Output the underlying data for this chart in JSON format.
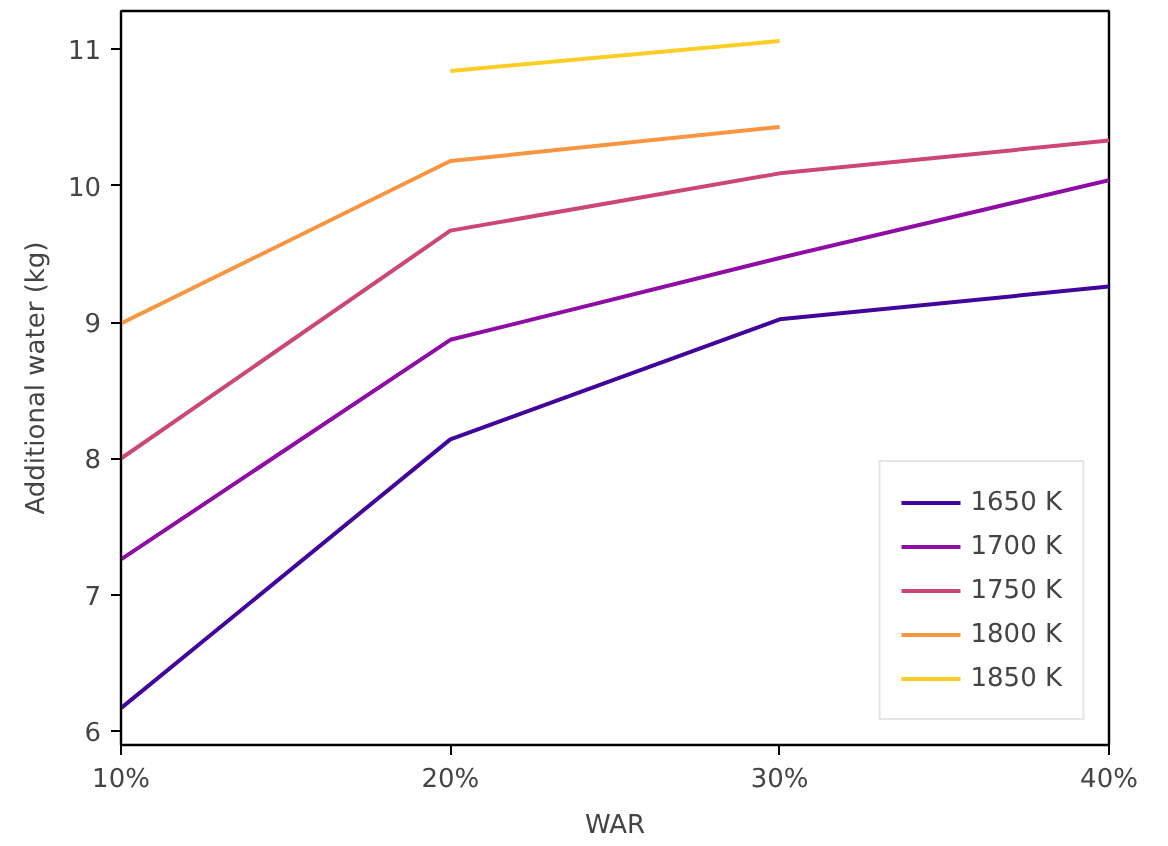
{
  "chart_data": {
    "type": "line",
    "xlabel": "WAR",
    "ylabel": "Additional water (kg)",
    "x": [
      10,
      20,
      30,
      40
    ],
    "xlim": [
      10,
      40
    ],
    "xticks": [
      {
        "value": 10,
        "label": "10%"
      },
      {
        "value": 20,
        "label": "20%"
      },
      {
        "value": 30,
        "label": "30%"
      },
      {
        "value": 40,
        "label": "40%"
      }
    ],
    "ylim": [
      5.9,
      11.28
    ],
    "yticks": [
      6,
      7,
      8,
      9,
      10,
      11
    ],
    "grid": false,
    "legend": "bottom right",
    "marker": "none",
    "line_style": "solid",
    "series": [
      {
        "name": "1650 K",
        "color": "#41049d",
        "values": [
          6.17,
          8.14,
          9.02,
          9.26
        ]
      },
      {
        "name": "1700 K",
        "color": "#8f0da4",
        "values": [
          7.26,
          8.87,
          9.47,
          10.04
        ]
      },
      {
        "name": "1750 K",
        "color": "#cc4778",
        "values": [
          8.0,
          9.67,
          10.09,
          10.33
        ]
      },
      {
        "name": "1800 K",
        "color": "#f89540",
        "values": [
          8.99,
          10.18,
          10.43,
          null
        ]
      },
      {
        "name": "1850 K",
        "color": "#fccd25",
        "values": [
          null,
          10.84,
          11.06,
          null
        ]
      }
    ]
  }
}
